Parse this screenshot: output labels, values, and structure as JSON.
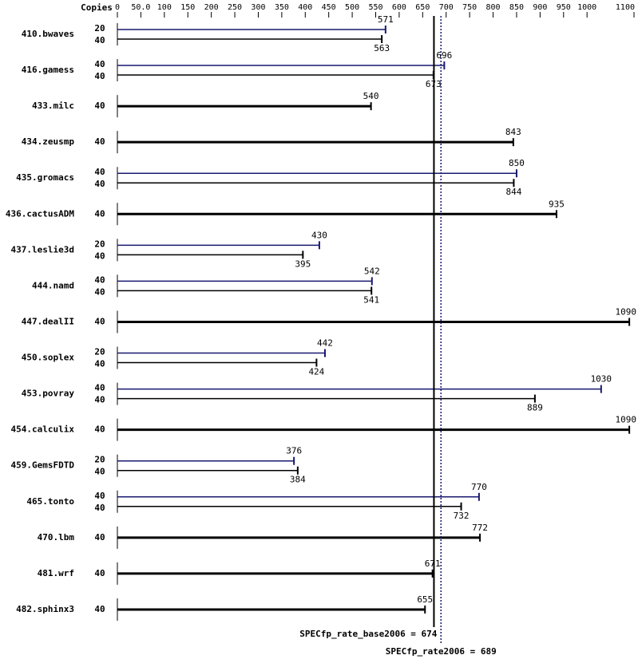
{
  "chart_data": {
    "type": "bar",
    "copies_header": "Copies",
    "xlim": [
      0,
      1100
    ],
    "xticks": [
      0,
      {
        "value": 50,
        "label": "50.0"
      },
      100,
      150,
      200,
      250,
      300,
      350,
      400,
      450,
      500,
      550,
      600,
      650,
      700,
      750,
      800,
      850,
      900,
      950,
      1000,
      1100
    ],
    "base_color": "#000000",
    "peak_color": "#191970",
    "benchmarks": [
      {
        "name": "410.bwaves",
        "peak": {
          "copies": 20,
          "value": 571
        },
        "base": {
          "copies": 40,
          "value": 563
        }
      },
      {
        "name": "416.gamess",
        "peak": {
          "copies": 40,
          "value": 696
        },
        "base": {
          "copies": 40,
          "value": 673
        }
      },
      {
        "name": "433.milc",
        "peak": null,
        "base": {
          "copies": 40,
          "value": 540
        }
      },
      {
        "name": "434.zeusmp",
        "peak": null,
        "base": {
          "copies": 40,
          "value": 843
        }
      },
      {
        "name": "435.gromacs",
        "peak": {
          "copies": 40,
          "value": 850
        },
        "base": {
          "copies": 40,
          "value": 844
        }
      },
      {
        "name": "436.cactusADM",
        "peak": null,
        "base": {
          "copies": 40,
          "value": 935
        }
      },
      {
        "name": "437.leslie3d",
        "peak": {
          "copies": 20,
          "value": 430
        },
        "base": {
          "copies": 40,
          "value": 395
        }
      },
      {
        "name": "444.namd",
        "peak": {
          "copies": 40,
          "value": 542
        },
        "base": {
          "copies": 40,
          "value": 541
        }
      },
      {
        "name": "447.dealII",
        "peak": null,
        "base": {
          "copies": 40,
          "value": 1090
        }
      },
      {
        "name": "450.soplex",
        "peak": {
          "copies": 20,
          "value": 442
        },
        "base": {
          "copies": 40,
          "value": 424
        }
      },
      {
        "name": "453.povray",
        "peak": {
          "copies": 40,
          "value": 1030
        },
        "base": {
          "copies": 40,
          "value": 889
        }
      },
      {
        "name": "454.calculix",
        "peak": null,
        "base": {
          "copies": 40,
          "value": 1090
        }
      },
      {
        "name": "459.GemsFDTD",
        "peak": {
          "copies": 20,
          "value": 376
        },
        "base": {
          "copies": 40,
          "value": 384
        }
      },
      {
        "name": "465.tonto",
        "peak": {
          "copies": 40,
          "value": 770
        },
        "base": {
          "copies": 40,
          "value": 732
        }
      },
      {
        "name": "470.lbm",
        "peak": null,
        "base": {
          "copies": 40,
          "value": 772
        }
      },
      {
        "name": "481.wrf",
        "peak": null,
        "base": {
          "copies": 40,
          "value": 671
        }
      },
      {
        "name": "482.sphinx3",
        "peak": null,
        "base": {
          "copies": 40,
          "value": 655
        }
      }
    ],
    "base_metric": {
      "label": "SPECfp_rate_base2006 = 674",
      "value": 674
    },
    "peak_metric": {
      "label": "SPECfp_rate2006 = 689",
      "value": 689
    }
  }
}
